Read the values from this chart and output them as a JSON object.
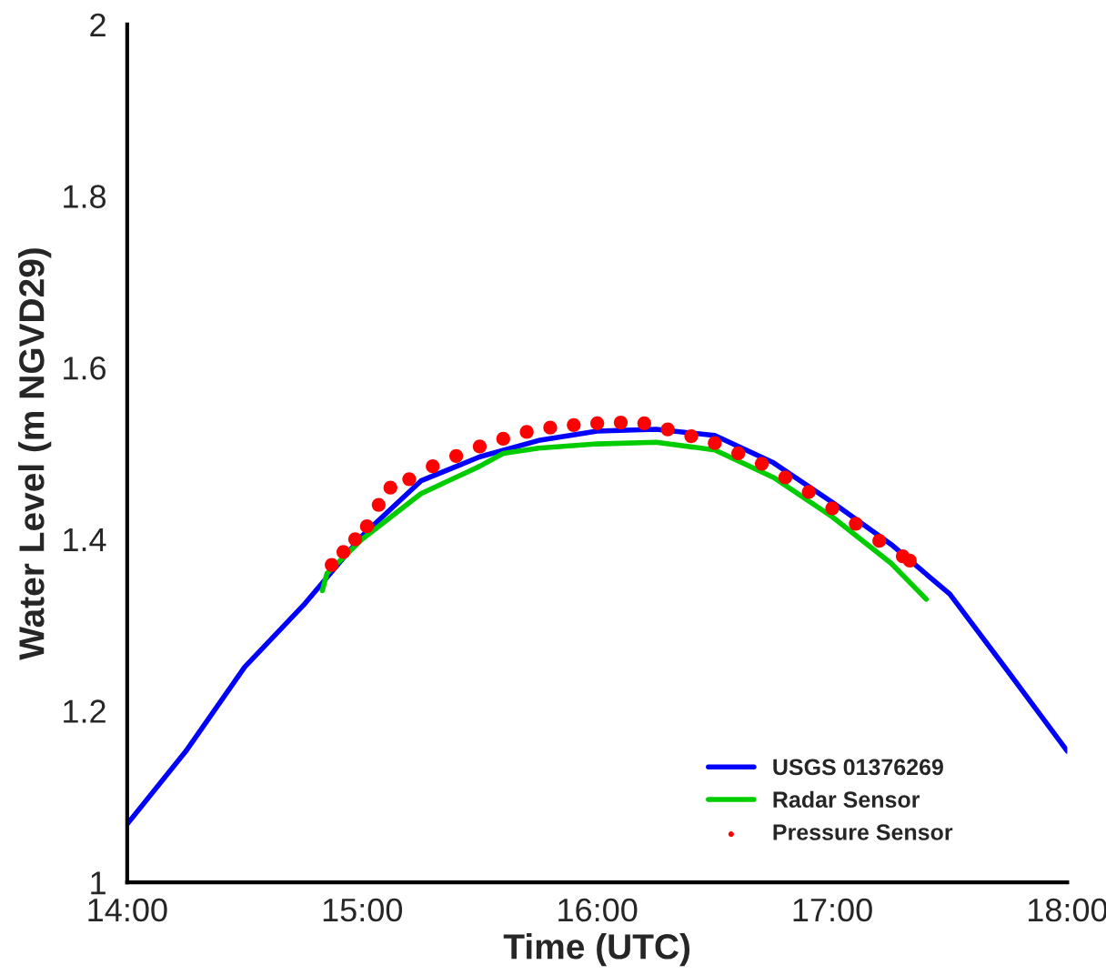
{
  "chart_data": {
    "type": "line",
    "xlabel": "Time (UTC)",
    "ylabel": "Water Level (m NGVD29)",
    "xlim": [
      14,
      18
    ],
    "xticks": [
      {
        "value": 14,
        "label": "14:00"
      },
      {
        "value": 15,
        "label": "15:00"
      },
      {
        "value": 16,
        "label": "16:00"
      },
      {
        "value": 17,
        "label": "17:00"
      },
      {
        "value": 18,
        "label": "18:00"
      }
    ],
    "ylim": [
      1,
      2
    ],
    "yticks": [
      1,
      1.2,
      1.4,
      1.6,
      1.8,
      2
    ],
    "grid": false,
    "legend": "bottom right",
    "series": [
      {
        "name": "USGS 01376269",
        "color": "#0000ff",
        "marker": "none",
        "x": [
          14,
          14.25,
          14.5,
          14.75,
          15,
          15.25,
          15.5,
          15.75,
          16,
          16.25,
          16.5,
          16.75,
          17,
          17.25,
          17.5,
          17.75,
          18
        ],
        "values": [
          1.068,
          1.153,
          1.251,
          1.323,
          1.404,
          1.468,
          1.496,
          1.515,
          1.526,
          1.528,
          1.521,
          1.489,
          1.443,
          1.394,
          1.336,
          1.245,
          1.153
        ]
      },
      {
        "name": "Radar Sensor",
        "color": "#00cc00",
        "marker": "none",
        "x": [
          14.83,
          14.85,
          15,
          15.25,
          15.5,
          15.6,
          15.75,
          16,
          16.25,
          16.5,
          16.75,
          17,
          17.25,
          17.4
        ],
        "values": [
          1.34,
          1.36,
          1.4,
          1.453,
          1.485,
          1.5,
          1.506,
          1.511,
          1.513,
          1.504,
          1.472,
          1.426,
          1.372,
          1.33
        ]
      },
      {
        "name": "Pressure Sensor",
        "color": "#ff0000",
        "type": "scatter",
        "marker": "circle",
        "x": [
          14.87,
          14.92,
          14.97,
          15.02,
          15.07,
          15.12,
          15.2,
          15.3,
          15.4,
          15.5,
          15.6,
          15.7,
          15.8,
          15.9,
          16,
          16.1,
          16.2,
          16.3,
          16.4,
          16.5,
          16.6,
          16.7,
          16.8,
          16.9,
          17,
          17.1,
          17.2,
          17.3,
          17.33
        ],
        "values": [
          1.37,
          1.385,
          1.4,
          1.415,
          1.44,
          1.46,
          1.47,
          1.485,
          1.497,
          1.508,
          1.517,
          1.525,
          1.53,
          1.533,
          1.535,
          1.536,
          1.535,
          1.528,
          1.52,
          1.512,
          1.5,
          1.488,
          1.472,
          1.455,
          1.436,
          1.418,
          1.398,
          1.38,
          1.375
        ]
      }
    ]
  }
}
